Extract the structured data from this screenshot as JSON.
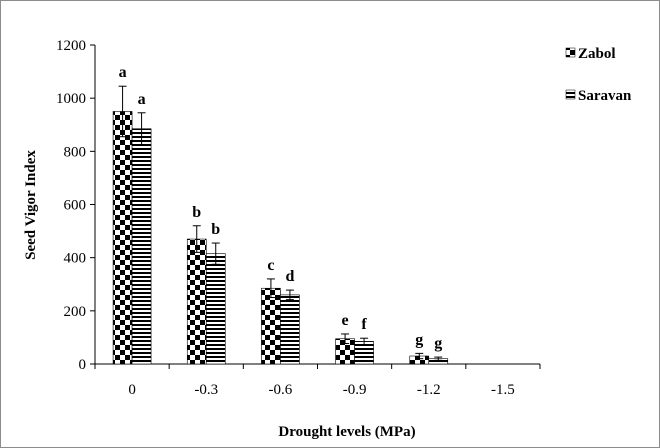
{
  "chart_data": {
    "type": "bar",
    "xlabel": "Drought levels (MPa)",
    "ylabel": "Seed Vigor Index",
    "ylim": [
      0,
      1200
    ],
    "yticks": [
      0,
      200,
      400,
      600,
      800,
      1000,
      1200
    ],
    "categories": [
      "0",
      "-0.3",
      "-0.6",
      "-0.9",
      "-1.2",
      "-1.5"
    ],
    "series": [
      {
        "name": "Zabol",
        "pattern": "checkerboard",
        "values": [
          950,
          470,
          285,
          95,
          30,
          0
        ],
        "errors": [
          95,
          50,
          35,
          18,
          10,
          0
        ],
        "labels": [
          "a",
          "b",
          "c",
          "e",
          "g",
          ""
        ]
      },
      {
        "name": "Saravan",
        "pattern": "horizontal-lines",
        "values": [
          885,
          415,
          260,
          85,
          20,
          0
        ],
        "errors": [
          60,
          40,
          18,
          12,
          6,
          0
        ],
        "labels": [
          "a",
          "b",
          "d",
          "f",
          "g",
          ""
        ]
      }
    ],
    "grid": false,
    "legend_position": "top-right"
  }
}
